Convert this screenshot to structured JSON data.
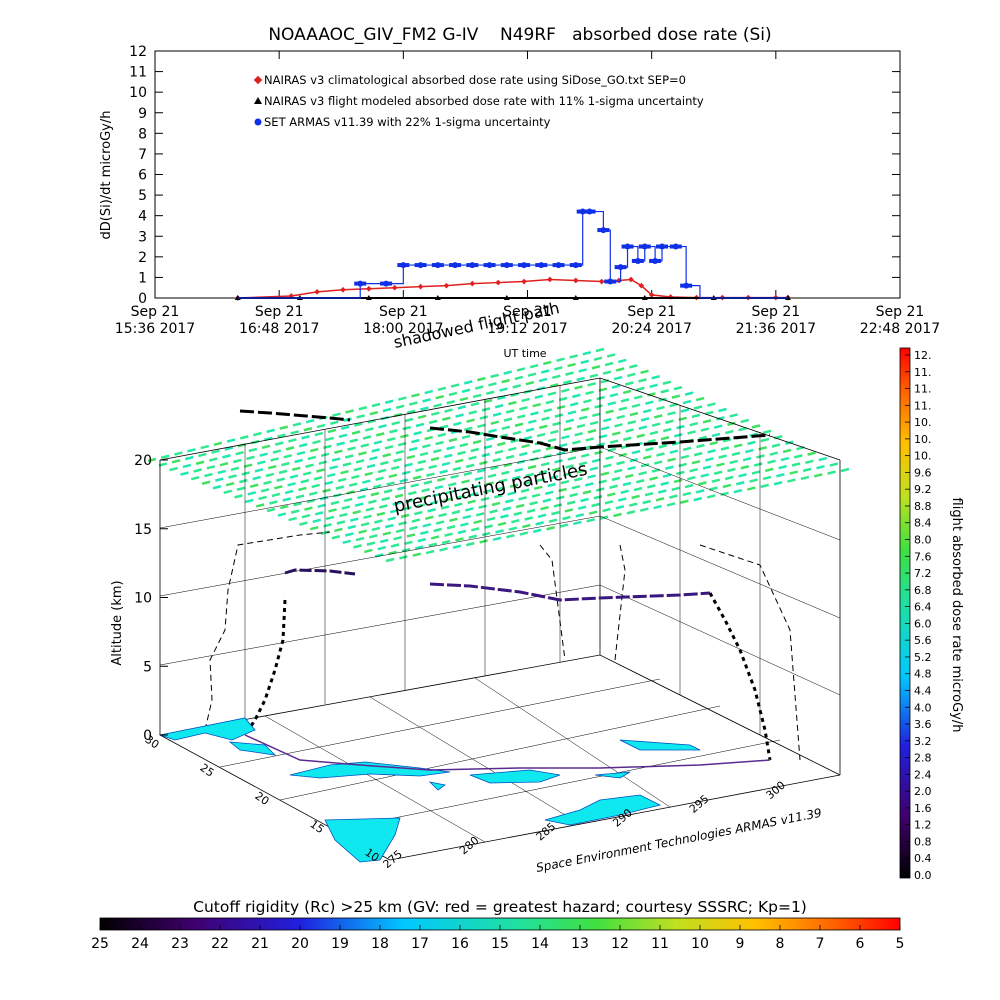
{
  "chart_data": [
    {
      "type": "line",
      "title": "NOAAAOC_GIV_FM2 G-IV    N49RF   absorbed dose rate (Si)",
      "ylabel": "dD(Si)/dt microGy/h",
      "xlabel": "UT time",
      "ylim": [
        0,
        12
      ],
      "yticks": [
        "0",
        "1",
        "2",
        "3",
        "4",
        "5",
        "6",
        "7",
        "8",
        "9",
        "10",
        "11",
        "12"
      ],
      "x_tick_labels": [
        {
          "date": "Sep 21",
          "time": "15:36 2017"
        },
        {
          "date": "Sep 21",
          "time": "16:48 2017"
        },
        {
          "date": "Sep 21",
          "time": "18:00 2017"
        },
        {
          "date": "Sep 21",
          "time": "19:12 2017"
        },
        {
          "date": "Sep 21",
          "time": "20:24 2017"
        },
        {
          "date": "Sep 21",
          "time": "21:36 2017"
        },
        {
          "date": "Sep 21",
          "time": "22:48 2017"
        }
      ],
      "xlim": [
        "2017-09-21 15:36",
        "2017-09-21 22:48"
      ],
      "legend": [
        {
          "label": "NAIRAS v3 climatological absorbed dose rate using SiDose_GO.txt SEP=0",
          "color": "#e02020",
          "marker": "diamond"
        },
        {
          "label": "NAIRAS v3 flight modeled absorbed dose rate with 11% 1-sigma uncertainty",
          "color": "#000000",
          "marker": "triangle"
        },
        {
          "label": "SET ARMAS v11.39 with 22% 1-sigma uncertainty",
          "color": "#1030e8",
          "marker": "circle"
        }
      ],
      "series": [
        {
          "name": "NAIRAS v3 climatological absorbed dose rate using SiDose_GO.txt SEP=0",
          "color": "#e02020",
          "x": [
            "16:24",
            "16:55",
            "17:10",
            "17:25",
            "17:40",
            "17:55",
            "18:10",
            "18:25",
            "18:40",
            "18:55",
            "19:10",
            "19:25",
            "19:40",
            "19:55",
            "20:05",
            "20:12",
            "20:18",
            "20:24",
            "20:35",
            "20:50",
            "21:05",
            "21:20",
            "21:36",
            "21:43"
          ],
          "y": [
            0,
            0.1,
            0.3,
            0.4,
            0.45,
            0.5,
            0.55,
            0.6,
            0.7,
            0.75,
            0.8,
            0.9,
            0.85,
            0.8,
            0.85,
            0.9,
            0.6,
            0.15,
            0.05,
            0.02,
            0.02,
            0.02,
            0.02,
            0.02
          ]
        },
        {
          "name": "NAIRAS v3 flight modeled absorbed dose rate with 11% 1-sigma uncertainty",
          "color": "#000000",
          "x": [
            "16:24",
            "17:00",
            "17:40",
            "18:20",
            "19:00",
            "19:40",
            "20:20",
            "21:00",
            "21:43"
          ],
          "y": [
            0,
            0,
            0,
            0,
            0,
            0,
            0,
            0,
            0
          ]
        },
        {
          "name": "SET ARMAS v11.39 with 22% 1-sigma uncertainty",
          "color": "#1030e8",
          "x": [
            "16:24",
            "17:35",
            "17:50",
            "18:00",
            "18:10",
            "18:20",
            "18:30",
            "18:40",
            "18:50",
            "19:00",
            "19:10",
            "19:20",
            "19:30",
            "19:40",
            "19:44",
            "19:48",
            "19:56",
            "20:00",
            "20:06",
            "20:10",
            "20:16",
            "20:20",
            "20:26",
            "20:30",
            "20:38",
            "20:44",
            "20:52",
            "21:00",
            "21:20",
            "21:43"
          ],
          "y": [
            0,
            0.7,
            0.7,
            1.6,
            1.6,
            1.6,
            1.6,
            1.6,
            1.6,
            1.6,
            1.6,
            1.6,
            1.6,
            1.6,
            4.2,
            4.2,
            3.3,
            0.8,
            1.5,
            2.5,
            1.8,
            2.5,
            1.8,
            2.5,
            2.5,
            0.6,
            0,
            0,
            0,
            0
          ]
        }
      ],
      "annotation": "shadowed flight path"
    },
    {
      "type": "3d-surface",
      "zlabel": "Altitude (km)",
      "zticks": [
        "0",
        "5",
        "10",
        "15",
        "20"
      ],
      "zlim": [
        0,
        20
      ],
      "lat_ticks": [
        "30",
        "25",
        "20",
        "15",
        "10"
      ],
      "lon_ticks": [
        "275",
        "280",
        "285",
        "290",
        "295",
        "300"
      ],
      "annotation": "precipitating particles",
      "credit": "Space Environment Technologies ARMAS v11.39",
      "flight_track": {
        "description": "aircraft flight path with altitude, colored by absorbed dose rate",
        "max_altitude_km": 12.5
      },
      "dose_colorbar": {
        "label": "flight absorbed dose rate microGy/h",
        "ticks": [
          "12.",
          "11.",
          "11.",
          "11.",
          "10.",
          "10.",
          "10.",
          "9.6",
          "9.2",
          "8.8",
          "8.4",
          "8.0",
          "7.6",
          "7.2",
          "6.8",
          "6.4",
          "6.0",
          "5.6",
          "5.2",
          "4.8",
          "4.4",
          "4.0",
          "3.6",
          "3.2",
          "2.8",
          "2.4",
          "2.0",
          "1.6",
          "1.2",
          "0.8",
          "0.4",
          "0.0"
        ]
      },
      "rigidity_colorbar": {
        "label": "Cutoff rigidity (Rc) >25 km (GV: red = greatest hazard; courtesy SSSRC; Kp=1)",
        "ticks": [
          "25",
          "24",
          "23",
          "22",
          "21",
          "20",
          "19",
          "18",
          "17",
          "16",
          "15",
          "14",
          "13",
          "12",
          "11",
          "10",
          "9",
          "8",
          "7",
          "6",
          "5"
        ]
      }
    }
  ]
}
